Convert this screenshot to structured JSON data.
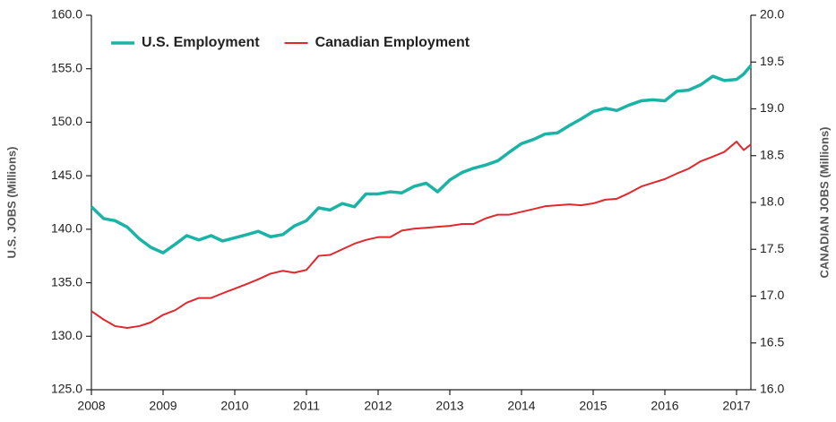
{
  "chart_data": {
    "type": "line",
    "y_label": "U.S. JOBS (Millions)",
    "y2_label": "CANADIAN JOBS (Millions)",
    "x": [
      2008,
      2008.17,
      2008.33,
      2008.5,
      2008.67,
      2008.83,
      2009,
      2009.17,
      2009.33,
      2009.5,
      2009.67,
      2009.83,
      2010,
      2010.17,
      2010.33,
      2010.5,
      2010.67,
      2010.83,
      2011,
      2011.17,
      2011.33,
      2011.5,
      2011.67,
      2011.83,
      2012,
      2012.17,
      2012.33,
      2012.5,
      2012.67,
      2012.83,
      2013,
      2013.17,
      2013.33,
      2013.5,
      2013.67,
      2013.83,
      2014,
      2014.17,
      2014.33,
      2014.5,
      2014.67,
      2014.83,
      2015,
      2015.17,
      2015.33,
      2015.5,
      2015.67,
      2015.83,
      2016,
      2016.17,
      2016.33,
      2016.5,
      2016.67,
      2016.83,
      2017,
      2017.1,
      2017.2
    ],
    "series": [
      {
        "name": "U.S. Employment",
        "color": "#1ab3a6",
        "values": [
          142.1,
          141.0,
          140.8,
          140.2,
          139.1,
          138.3,
          137.8,
          138.6,
          139.4,
          139.0,
          139.4,
          138.9,
          139.2,
          139.5,
          139.8,
          139.3,
          139.5,
          140.3,
          140.8,
          142.0,
          141.8,
          142.4,
          142.1,
          143.3,
          143.3,
          143.5,
          143.4,
          144.0,
          144.3,
          143.5,
          144.6,
          145.3,
          145.7,
          146.0,
          146.4,
          147.2,
          148.0,
          148.4,
          148.9,
          149.0,
          149.7,
          150.3,
          151.0,
          151.3,
          151.1,
          151.6,
          152.0,
          152.1,
          152.0,
          152.9,
          153.0,
          153.5,
          154.3,
          153.9,
          154.0,
          154.5,
          155.3
        ]
      },
      {
        "name": "Canadian Employment",
        "color": "#e0282e",
        "axis": "y2",
        "values": [
          16.84,
          16.75,
          16.68,
          16.66,
          16.68,
          16.72,
          16.8,
          16.85,
          16.93,
          16.98,
          16.98,
          17.03,
          17.08,
          17.13,
          17.18,
          17.24,
          17.27,
          17.25,
          17.28,
          17.43,
          17.44,
          17.5,
          17.56,
          17.6,
          17.63,
          17.63,
          17.7,
          17.72,
          17.73,
          17.74,
          17.75,
          17.77,
          17.77,
          17.83,
          17.87,
          17.87,
          17.9,
          17.93,
          17.96,
          17.97,
          17.98,
          17.97,
          17.99,
          18.03,
          18.04,
          18.1,
          18.17,
          18.21,
          18.25,
          18.31,
          18.36,
          18.44,
          18.49,
          18.54,
          18.65,
          18.56,
          18.62
        ]
      }
    ],
    "xlim": [
      2008,
      2017.2
    ],
    "xticks": [
      2008,
      2009,
      2010,
      2011,
      2012,
      2013,
      2014,
      2015,
      2016,
      2017
    ],
    "ylim": [
      125,
      160
    ],
    "yticks": [
      {
        "value": 125,
        "label": "125.0"
      },
      {
        "value": 130,
        "label": "130.0"
      },
      {
        "value": 135,
        "label": "135.0"
      },
      {
        "value": 140,
        "label": "140.0"
      },
      {
        "value": 145,
        "label": "145.0"
      },
      {
        "value": 150,
        "label": "150.0"
      },
      {
        "value": 155,
        "label": "155.0"
      },
      {
        "value": 160,
        "label": "160.0"
      }
    ],
    "y2lim": [
      16,
      20
    ],
    "y2ticks": [
      {
        "value": 16,
        "label": "16.0"
      },
      {
        "value": 16.5,
        "label": "16.5"
      },
      {
        "value": 17,
        "label": "17.0"
      },
      {
        "value": 17.5,
        "label": "17.5"
      },
      {
        "value": 18,
        "label": "18.0"
      },
      {
        "value": 18.5,
        "label": "18.5"
      },
      {
        "value": 19,
        "label": "19.0"
      },
      {
        "value": 19.5,
        "label": "19.5"
      },
      {
        "value": 20,
        "label": "20.0"
      }
    ],
    "grid": false,
    "legend": "top-left"
  }
}
